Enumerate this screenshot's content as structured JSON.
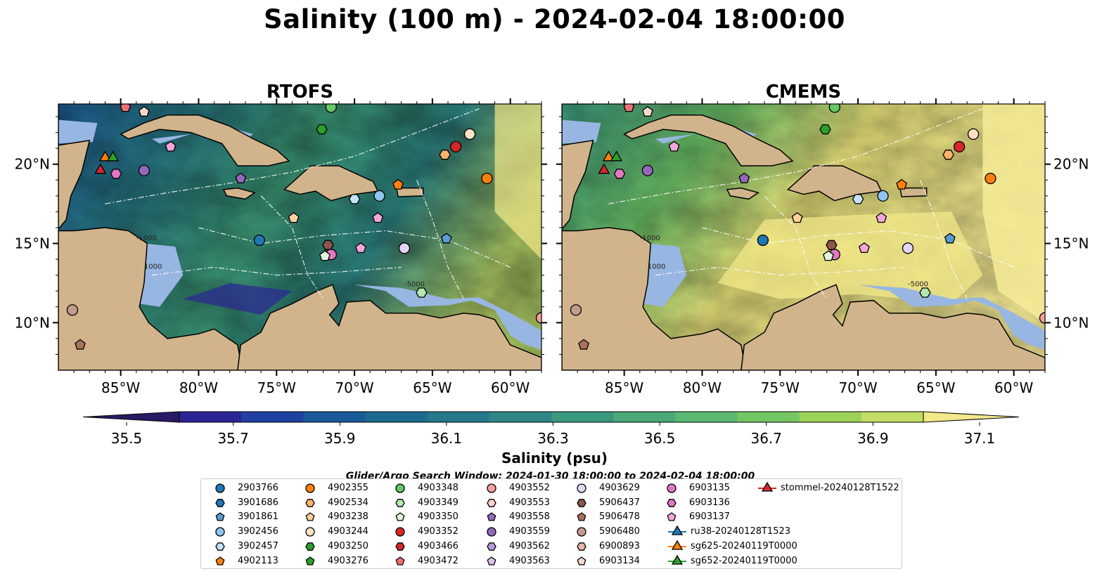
{
  "title": "Salinity (100 m) - 2024-02-04 18:00:00",
  "panels": [
    {
      "title": "RTOFS",
      "key": "rtofs"
    },
    {
      "title": "CMEMS",
      "key": "cmems"
    }
  ],
  "lon_ticks": [
    "85°W",
    "80°W",
    "75°W",
    "70°W",
    "65°W",
    "60°W"
  ],
  "lat_ticks": [
    "20°N",
    "15°N",
    "10°N"
  ],
  "colorbar": {
    "label": "Salinity (psu)",
    "ticks": [
      "35.5",
      "35.7",
      "35.9",
      "36.1",
      "36.3",
      "36.5",
      "36.7",
      "36.9",
      "37.1"
    ],
    "range": [
      35.5,
      37.2
    ],
    "colors": [
      "#2a1a63",
      "#2b2594",
      "#1f40a0",
      "#1a5a9a",
      "#1d6b90",
      "#24798a",
      "#2e8785",
      "#3a987f",
      "#4aa978",
      "#5bb971",
      "#74c663",
      "#9ad25a",
      "#c2dc66",
      "#f3e88a"
    ]
  },
  "contour_labels": [
    "-1000",
    "1000",
    "-5000"
  ],
  "search_window": "Glider/Argo Search Window: 2024-01-30 18:00:00 to 2024-02-04 18:00:00",
  "legend": [
    {
      "id": "2903766",
      "marker": "circle",
      "color": "#1f77b4"
    },
    {
      "id": "3901686",
      "marker": "hexagon",
      "color": "#1f77b4"
    },
    {
      "id": "3901861",
      "marker": "pentagon",
      "color": "#5b9bd5"
    },
    {
      "id": "3902456",
      "marker": "circle",
      "color": "#8ec4ee"
    },
    {
      "id": "3902457",
      "marker": "hexagon",
      "color": "#c5e3f7"
    },
    {
      "id": "4902113",
      "marker": "pentagon",
      "color": "#ff7f0e"
    },
    {
      "id": "4902355",
      "marker": "circle",
      "color": "#ff7f0e"
    },
    {
      "id": "4902534",
      "marker": "hexagon",
      "color": "#ffb36b"
    },
    {
      "id": "4903238",
      "marker": "pentagon",
      "color": "#ffd09e"
    },
    {
      "id": "4903244",
      "marker": "circle",
      "color": "#ffe3c4"
    },
    {
      "id": "4903250",
      "marker": "hexagon",
      "color": "#2ca02c"
    },
    {
      "id": "4903276",
      "marker": "pentagon",
      "color": "#2ca02c"
    },
    {
      "id": "4903348",
      "marker": "circle",
      "color": "#66c766"
    },
    {
      "id": "4903349",
      "marker": "hexagon",
      "color": "#b5e8b0"
    },
    {
      "id": "4903350",
      "marker": "pentagon",
      "color": "#e0f5da"
    },
    {
      "id": "4903352",
      "marker": "circle",
      "color": "#d62728"
    },
    {
      "id": "4903466",
      "marker": "hexagon",
      "color": "#d62728"
    },
    {
      "id": "4903472",
      "marker": "pentagon",
      "color": "#f07070"
    },
    {
      "id": "4903552",
      "marker": "circle",
      "color": "#f4a09e"
    },
    {
      "id": "4903553",
      "marker": "hexagon",
      "color": "#fcd0ce"
    },
    {
      "id": "4903558",
      "marker": "pentagon",
      "color": "#9467bd"
    },
    {
      "id": "4903559",
      "marker": "circle",
      "color": "#9467bd"
    },
    {
      "id": "4903562",
      "marker": "hexagon",
      "color": "#b99ad8"
    },
    {
      "id": "4903563",
      "marker": "pentagon",
      "color": "#d8c3ee"
    },
    {
      "id": "4903629",
      "marker": "circle",
      "color": "#e6d6f5"
    },
    {
      "id": "5906437",
      "marker": "hexagon",
      "color": "#8c564b"
    },
    {
      "id": "5906478",
      "marker": "pentagon",
      "color": "#a97060"
    },
    {
      "id": "5906480",
      "marker": "circle",
      "color": "#c49c8f"
    },
    {
      "id": "6900893",
      "marker": "hexagon",
      "color": "#e3b9ab"
    },
    {
      "id": "6903134",
      "marker": "pentagon",
      "color": "#f6d8cc"
    },
    {
      "id": "6903135",
      "marker": "circle",
      "color": "#e377c2"
    },
    {
      "id": "6903136",
      "marker": "hexagon",
      "color": "#e377c2"
    },
    {
      "id": "6903137",
      "marker": "pentagon",
      "color": "#f2a7da"
    },
    {
      "id": "ru38-20240128T1523",
      "marker": "triangle",
      "color": "#1f77b4"
    },
    {
      "id": "sg625-20240119T0000",
      "marker": "triangle",
      "color": "#ff7f0e"
    },
    {
      "id": "sg652-20240119T0000",
      "marker": "triangle",
      "color": "#2ca02c"
    },
    {
      "id": "stommel-20240128T1522",
      "marker": "triangle",
      "color": "#d62728"
    }
  ],
  "map_extent": {
    "lon": [
      -89,
      -58
    ],
    "lat": [
      7,
      23.8
    ]
  },
  "observations": [
    {
      "id": "4903472",
      "lon": -84.7,
      "lat": 23.6
    },
    {
      "id": "6903134",
      "lon": -83.5,
      "lat": 23.3
    },
    {
      "id": "6903137",
      "lon": -81.8,
      "lat": 21.1
    },
    {
      "id": "4903559",
      "lon": -83.5,
      "lat": 19.6
    },
    {
      "id": "6903136",
      "lon": -85.3,
      "lat": 19.4
    },
    {
      "id": "4903558",
      "lon": -77.3,
      "lat": 19.1
    },
    {
      "id": "4903348",
      "lon": -71.5,
      "lat": 23.6
    },
    {
      "id": "4903250",
      "lon": -72.1,
      "lat": 22.2
    },
    {
      "id": "4903244",
      "lon": -62.6,
      "lat": 21.9
    },
    {
      "id": "4902534",
      "lon": -64.2,
      "lat": 20.6
    },
    {
      "id": "4903352",
      "lon": -63.5,
      "lat": 21.1
    },
    {
      "id": "4902355",
      "lon": -61.5,
      "lat": 19.1
    },
    {
      "id": "4902113",
      "lon": -67.2,
      "lat": 18.7
    },
    {
      "id": "3902456",
      "lon": -68.4,
      "lat": 18.0
    },
    {
      "id": "3902457",
      "lon": -70.0,
      "lat": 17.8
    },
    {
      "id": "4903238",
      "lon": -73.9,
      "lat": 16.6
    },
    {
      "id": "6903137",
      "lon": -68.5,
      "lat": 16.6
    },
    {
      "id": "2903766",
      "lon": -76.1,
      "lat": 15.2
    },
    {
      "id": "5906437",
      "lon": -71.7,
      "lat": 14.9
    },
    {
      "id": "6903135",
      "lon": -71.5,
      "lat": 14.3
    },
    {
      "id": "4903350",
      "lon": -71.9,
      "lat": 14.2
    },
    {
      "id": "6903137",
      "lon": -69.6,
      "lat": 14.7
    },
    {
      "id": "4903629",
      "lon": -66.8,
      "lat": 14.7
    },
    {
      "id": "3901861",
      "lon": -64.1,
      "lat": 15.3
    },
    {
      "id": "4903349",
      "lon": -65.7,
      "lat": 11.9
    },
    {
      "id": "5906480",
      "lon": -88.1,
      "lat": 10.8
    },
    {
      "id": "5906478",
      "lon": -87.6,
      "lat": 8.6
    },
    {
      "id": "4903552",
      "lon": -58.0,
      "lat": 10.3
    },
    {
      "id": "sg625-20240119T0000",
      "lon": -86.0,
      "lat": 20.5
    },
    {
      "id": "sg652-20240119T0000",
      "lon": -85.5,
      "lat": 20.5
    },
    {
      "id": "stommel-20240128T1522",
      "lon": -86.3,
      "lat": 19.7
    }
  ]
}
